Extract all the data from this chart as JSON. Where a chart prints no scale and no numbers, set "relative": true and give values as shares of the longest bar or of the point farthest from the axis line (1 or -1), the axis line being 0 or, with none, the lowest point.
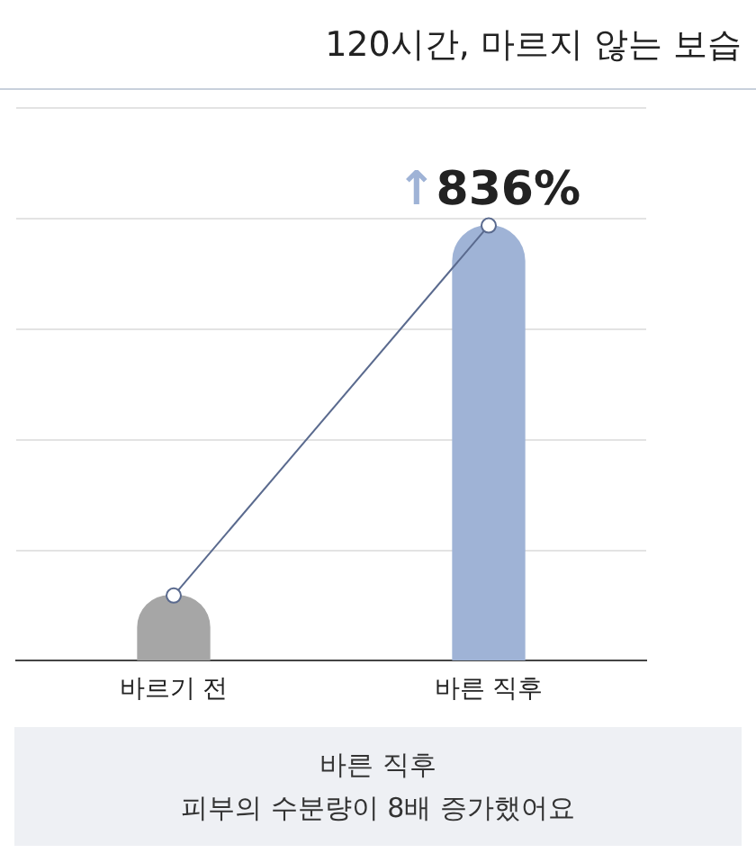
{
  "chart_data": {
    "type": "bar",
    "title": "120시간, 마르지 않는 보습",
    "relative": true,
    "categories": [
      "바르기 전",
      "바른 직후"
    ],
    "values": [
      0.15,
      1
    ],
    "colors": [
      "#a6a6a6",
      "#9fb3d6"
    ],
    "series": [
      {
        "type": "line",
        "color": "#5a6a8e",
        "values": [
          0.15,
          1
        ]
      }
    ],
    "marker": "circle",
    "grid": "y",
    "annotations": [
      {
        "text": "↑836%",
        "x": "바른 직후",
        "y": 1
      },
      "바른 직후",
      "피부의 수분량이 8배 증가했어요"
    ]
  }
}
